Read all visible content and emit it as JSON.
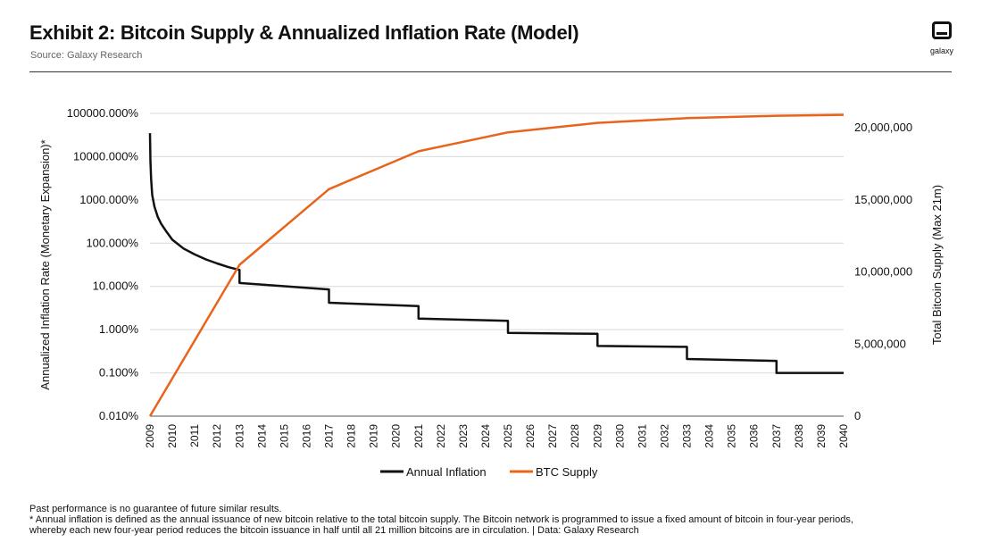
{
  "header": {
    "title": "Exhibit 2: Bitcoin Supply & Annualized Inflation Rate (Model)",
    "source": "Source: Galaxy Research",
    "logo_text": "galaxy"
  },
  "footer": {
    "line1": "Past performance is no guarantee of future similar results.",
    "line2": "* Annual inflation is defined as the annual issuance of new bitcoin relative to the total bitcoin supply. The Bitcoin network is programmed to issue a fixed amount of bitcoin in four-year periods,",
    "line3": "whereby each new four-year period reduces the bitcoin issuance in half until all 21 million bitcoins are in circulation.  |  Data: Galaxy Research"
  },
  "colors": {
    "inflation": "#111111",
    "supply": "#E8641B",
    "grid": "#d9d9d9"
  },
  "chart_data": {
    "type": "line",
    "title": "Exhibit 2: Bitcoin Supply & Annualized Inflation Rate (Model)",
    "xlabel": "",
    "ylabel_left": "Annualized Inflation Rate (Monetary Expansion)*",
    "ylabel_right": "Total Bitcoin Supply (Max 21m)",
    "x_ticks": [
      "2009",
      "2010",
      "2011",
      "2012",
      "2013",
      "2014",
      "2015",
      "2016",
      "2017",
      "2018",
      "2019",
      "2020",
      "2021",
      "2022",
      "2023",
      "2024",
      "2025",
      "2026",
      "2027",
      "2028",
      "2029",
      "2030",
      "2031",
      "2032",
      "2033",
      "2034",
      "2035",
      "2036",
      "2037",
      "2038",
      "2039",
      "2040"
    ],
    "x_range": [
      2009,
      2040
    ],
    "y_left": {
      "scale": "log",
      "range_percent": [
        0.01,
        100000
      ],
      "tick_values": [
        100000,
        10000,
        1000,
        100,
        10,
        1,
        0.1,
        0.01
      ],
      "tick_labels": [
        "100000.000%",
        "10000.000%",
        "1000.000%",
        "100.000%",
        "10.000%",
        "1.000%",
        "0.100%",
        "0.010%"
      ]
    },
    "y_right": {
      "scale": "linear",
      "range": [
        0,
        21000000
      ],
      "tick_values": [
        0,
        5000000,
        10000000,
        15000000,
        20000000
      ],
      "tick_labels": [
        "0",
        "5,000,000",
        "10,000,000",
        "15,000,000",
        "20,000,000"
      ]
    },
    "legend": [
      "Annual Inflation",
      "BTC Supply"
    ],
    "legend_position": "bottom-center",
    "grid": true,
    "series": [
      {
        "name": "Annual Inflation",
        "axis": "left",
        "x": [
          2009.0,
          2009.02,
          2009.05,
          2009.1,
          2009.2,
          2009.35,
          2009.5,
          2009.75,
          2010.0,
          2010.5,
          2011.0,
          2011.5,
          2012.0,
          2012.5,
          2013.0,
          2013.0,
          2017.0,
          2017.0,
          2021.0,
          2021.0,
          2025.0,
          2025.0,
          2029.0,
          2029.0,
          2033.0,
          2033.0,
          2037.0,
          2037.0,
          2040.0
        ],
        "values": [
          35000,
          8000,
          3000,
          1300,
          700,
          400,
          280,
          180,
          120,
          75,
          55,
          42,
          34,
          28,
          24,
          12,
          8.5,
          4.2,
          3.5,
          1.8,
          1.6,
          0.84,
          0.8,
          0.42,
          0.4,
          0.21,
          0.19,
          0.1,
          0.1
        ]
      },
      {
        "name": "BTC Supply",
        "axis": "right",
        "x": [
          2009,
          2013,
          2017,
          2021,
          2025,
          2029,
          2033,
          2037,
          2040
        ],
        "values": [
          0,
          10500000,
          15750000,
          18375000,
          19687500,
          20343750,
          20671875,
          20835938,
          20900000
        ]
      }
    ]
  }
}
